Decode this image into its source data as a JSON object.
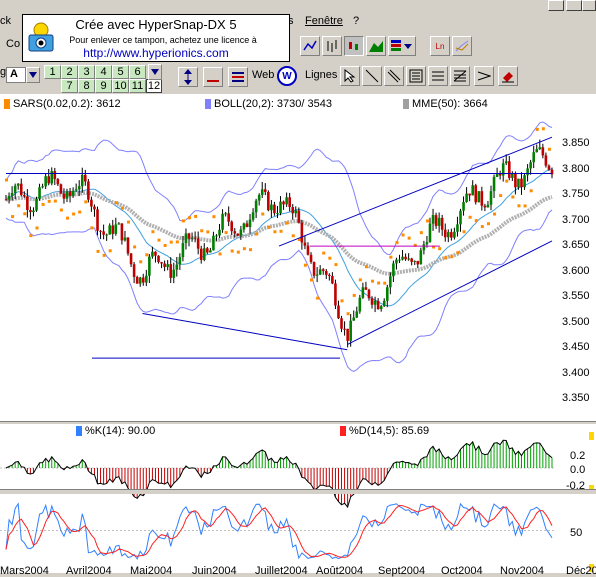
{
  "menubar": {
    "left_item": "ck",
    "items": [
      "s",
      "Fenêtre",
      "?"
    ]
  },
  "stamp": {
    "line1": "Crée avec HyperSnap-DX 5",
    "line2": "Pour enlever ce tampon, achetez une licence à",
    "line3": "http://www.hyperionics.com"
  },
  "toolbar": {
    "font_dropdown": "A",
    "period_buttons": [
      "1",
      "2",
      "3",
      "4",
      "5",
      "6",
      "7",
      "8",
      "9",
      "10",
      "11",
      "12"
    ],
    "selected_period": "12",
    "web_label": "Web",
    "lines_label": "Lignes",
    "left_cut": "Co",
    "left_cut2": "g"
  },
  "indicators": {
    "sars": {
      "label": "SARS(0.02,0.2):",
      "value": "3612",
      "color": "#ff8c00"
    },
    "boll": {
      "label": "BOLL(20,2):",
      "value": "3730/  3543",
      "color": "#8080ff"
    },
    "mme": {
      "label": "MME(50):",
      "value": "3664",
      "color": "#a0a0a0"
    },
    "k": {
      "label": "%K(14):",
      "value": "90.00",
      "color": "#3080ff"
    },
    "d": {
      "label": "%D(14,5):",
      "value": "85.69",
      "color": "#ff2020"
    }
  },
  "price_axis": [
    "3.850",
    "3.800",
    "3.750",
    "3.700",
    "3.650",
    "3.600",
    "3.550",
    "3.500",
    "3.450",
    "3.400",
    "3.350"
  ],
  "macd_axis": [
    "0.2",
    "0.0",
    "-0.2"
  ],
  "stoch_axis": [
    "50"
  ],
  "x_axis": [
    "Mars2004",
    "Avril2004",
    "Mai2004",
    "Juin2004",
    "Juillet2004",
    "Août2004",
    "Sept2004",
    "Oct2004",
    "Nov2004",
    "Déc20"
  ],
  "chart_data": {
    "type": "line",
    "title": "",
    "xlabel": "",
    "ylabel": "",
    "ylim": [
      3.33,
      3.87
    ],
    "x": [
      "Mars2004",
      "Avril2004",
      "Mai2004",
      "Juin2004",
      "Juillet2004",
      "Août2004",
      "Sept2004",
      "Oct2004",
      "Nov2004"
    ],
    "series": [
      {
        "name": "SARS(0.02,0.2)",
        "values": [
          3.56,
          3.61,
          3.64,
          3.66,
          3.62,
          3.57,
          3.6,
          3.66,
          3.71
        ]
      },
      {
        "name": "BOLL(20,2)",
        "values": [
          3.72,
          3.7,
          3.64,
          3.66,
          3.7,
          3.6,
          3.7,
          3.73,
          3.78
        ]
      },
      {
        "name": "MME(50)",
        "values": [
          3.63,
          3.66,
          3.67,
          3.68,
          3.66,
          3.62,
          3.64,
          3.67,
          3.72
        ]
      }
    ],
    "close": [
      3.74,
      3.77,
      3.6,
      3.66,
      3.75,
      3.5,
      3.64,
      3.76,
      3.82
    ],
    "trendlines": [
      {
        "from": [
          "Mars2004",
          3.79
        ],
        "to": [
          "Nov2004",
          3.79
        ]
      },
      {
        "from": [
          "Mai2004",
          3.52
        ],
        "to": [
          "Août2004",
          3.45
        ]
      },
      {
        "from": [
          "Août2004",
          3.46
        ],
        "to": [
          "Nov2004",
          3.66
        ]
      },
      {
        "from": [
          "Juillet2004",
          3.65
        ],
        "to": [
          "Nov2004",
          3.86
        ]
      }
    ]
  }
}
